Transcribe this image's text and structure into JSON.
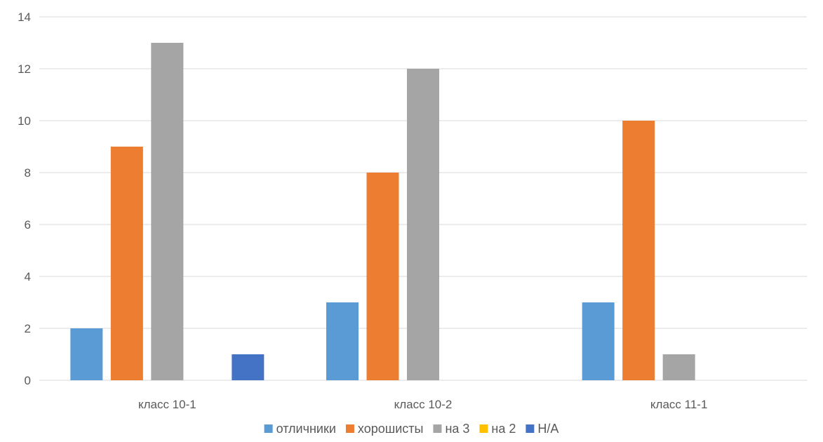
{
  "chart_data": {
    "type": "bar",
    "title": "",
    "xlabel": "",
    "ylabel": "",
    "categories": [
      "класс 10-1",
      "класс 10-2",
      "класс 11-1"
    ],
    "ylim": [
      0,
      14
    ],
    "yticks": [
      0,
      2,
      4,
      6,
      8,
      10,
      12,
      14
    ],
    "grid": true,
    "legend_position": "bottom",
    "series": [
      {
        "name": "отличники",
        "color": "#5b9bd5",
        "values": [
          2,
          3,
          3
        ]
      },
      {
        "name": "хорошисты",
        "color": "#ed7d31",
        "values": [
          9,
          8,
          10
        ]
      },
      {
        "name": "на 3",
        "color": "#a5a5a5",
        "values": [
          13,
          12,
          1
        ]
      },
      {
        "name": "на 2",
        "color": "#ffc000",
        "values": [
          0,
          0,
          0
        ]
      },
      {
        "name": "Н/А",
        "color": "#4472c4",
        "values": [
          1,
          0,
          0
        ]
      }
    ]
  }
}
